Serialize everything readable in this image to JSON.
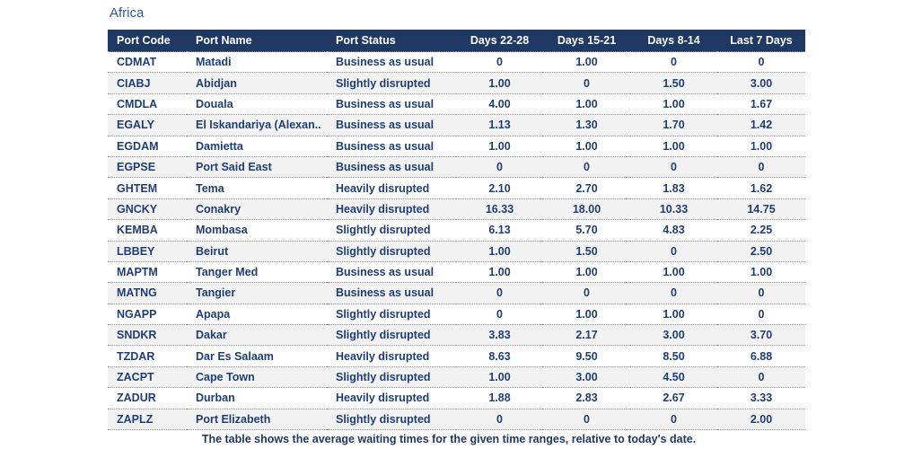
{
  "title": "Africa",
  "footnote": "The table shows the average waiting times for the given time ranges, relative to today's date.",
  "colors": {
    "header_bg": "#1f3864",
    "header_text": "#ffffff",
    "body_text": "#1f3e77",
    "title_text": "#2e5b9e",
    "row_stripe": "#f2f2f2",
    "row_border": "#8f8f8f"
  },
  "chart_data": {
    "type": "table",
    "title": "Africa",
    "columns": [
      "Port Code",
      "Port Name",
      "Port Status",
      "Days 22-28",
      "Days 15-21",
      "Days 8-14",
      "Last 7 Days"
    ],
    "rows": [
      [
        "CDMAT",
        "Matadi",
        "Business as usual",
        "0",
        "1.00",
        "0",
        "0"
      ],
      [
        "CIABJ",
        "Abidjan",
        "Slightly disrupted",
        "1.00",
        "0",
        "1.50",
        "3.00"
      ],
      [
        "CMDLA",
        "Douala",
        "Business as usual",
        "4.00",
        "1.00",
        "1.00",
        "1.67"
      ],
      [
        "EGALY",
        "El Iskandariya (Alexan..",
        "Business as usual",
        "1.13",
        "1.30",
        "1.70",
        "1.42"
      ],
      [
        "EGDAM",
        "Damietta",
        "Business as usual",
        "1.00",
        "1.00",
        "1.00",
        "1.00"
      ],
      [
        "EGPSE",
        "Port Said East",
        "Business as usual",
        "0",
        "0",
        "0",
        "0"
      ],
      [
        "GHTEM",
        "Tema",
        "Heavily disrupted",
        "2.10",
        "2.70",
        "1.83",
        "1.62"
      ],
      [
        "GNCKY",
        "Conakry",
        "Heavily disrupted",
        "16.33",
        "18.00",
        "10.33",
        "14.75"
      ],
      [
        "KEMBA",
        "Mombasa",
        "Slightly disrupted",
        "6.13",
        "5.70",
        "4.83",
        "2.25"
      ],
      [
        "LBBEY",
        "Beirut",
        "Slightly disrupted",
        "1.00",
        "1.50",
        "0",
        "2.50"
      ],
      [
        "MAPTM",
        "Tanger Med",
        "Business as usual",
        "1.00",
        "1.00",
        "1.00",
        "1.00"
      ],
      [
        "MATNG",
        "Tangier",
        "Business as usual",
        "0",
        "0",
        "0",
        "0"
      ],
      [
        "NGAPP",
        "Apapa",
        "Slightly disrupted",
        "0",
        "1.00",
        "1.00",
        "0"
      ],
      [
        "SNDKR",
        "Dakar",
        "Slightly disrupted",
        "3.83",
        "2.17",
        "3.00",
        "3.70"
      ],
      [
        "TZDAR",
        "Dar Es Salaam",
        "Heavily disrupted",
        "8.63",
        "9.50",
        "8.50",
        "6.88"
      ],
      [
        "ZACPT",
        "Cape Town",
        "Slightly disrupted",
        "1.00",
        "3.00",
        "4.50",
        "0"
      ],
      [
        "ZADUR",
        "Durban",
        "Heavily disrupted",
        "1.88",
        "2.83",
        "2.67",
        "3.33"
      ],
      [
        "ZAPLZ",
        "Port Elizabeth",
        "Slightly disrupted",
        "0",
        "0",
        "0",
        "2.00"
      ]
    ]
  }
}
